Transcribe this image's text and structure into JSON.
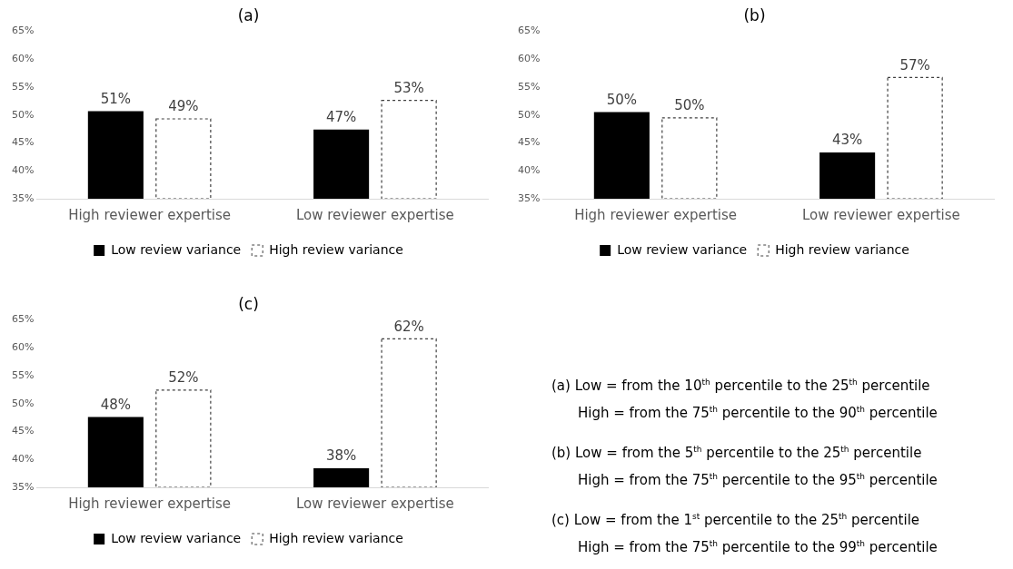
{
  "chart_data": [
    {
      "type": "bar",
      "title": "(a)",
      "categories": [
        "High reviewer expertise",
        "Low reviewer expertise"
      ],
      "series": [
        {
          "name": "Low review variance",
          "color": "#000000",
          "values": [
            50.7,
            47.4
          ],
          "value_labels": [
            "51%",
            "47%"
          ]
        },
        {
          "name": "High review variance",
          "color": "#404040",
          "line_style": "dashed",
          "values": [
            49.3,
            52.6
          ],
          "value_labels": [
            "49%",
            "53%"
          ]
        }
      ],
      "ylim": [
        35,
        65
      ],
      "yticks": [
        {
          "value": 35,
          "label": "35%"
        },
        {
          "value": 40,
          "label": "40%"
        },
        {
          "value": 45,
          "label": "45%"
        },
        {
          "value": 50,
          "label": "50%"
        },
        {
          "value": 55,
          "label": "55%"
        },
        {
          "value": 60,
          "label": "60%"
        },
        {
          "value": 65,
          "label": "65%"
        }
      ],
      "grid": false,
      "legend": "bottom"
    },
    {
      "type": "bar",
      "title": "(b)",
      "categories": [
        "High reviewer expertise",
        "Low reviewer expertise"
      ],
      "series": [
        {
          "name": "Low review variance",
          "color": "#000000",
          "values": [
            50.5,
            43.3
          ],
          "value_labels": [
            "50%",
            "43%"
          ]
        },
        {
          "name": "High review variance",
          "color": "#404040",
          "line_style": "dashed",
          "values": [
            49.5,
            56.7
          ],
          "value_labels": [
            "50%",
            "57%"
          ]
        }
      ],
      "ylim": [
        35,
        65
      ],
      "yticks": [
        {
          "value": 35,
          "label": "35%"
        },
        {
          "value": 40,
          "label": "40%"
        },
        {
          "value": 45,
          "label": "45%"
        },
        {
          "value": 50,
          "label": "50%"
        },
        {
          "value": 55,
          "label": "55%"
        },
        {
          "value": 60,
          "label": "60%"
        },
        {
          "value": 65,
          "label": "65%"
        }
      ],
      "grid": false,
      "legend": "bottom"
    },
    {
      "type": "bar",
      "title": "(c)",
      "categories": [
        "High reviewer expertise",
        "Low reviewer expertise"
      ],
      "series": [
        {
          "name": "Low review variance",
          "color": "#000000",
          "values": [
            47.6,
            38.4
          ],
          "value_labels": [
            "48%",
            "38%"
          ]
        },
        {
          "name": "High review variance",
          "color": "#404040",
          "line_style": "dashed",
          "values": [
            52.4,
            61.6
          ],
          "value_labels": [
            "52%",
            "62%"
          ]
        }
      ],
      "ylim": [
        35,
        65
      ],
      "yticks": [
        {
          "value": 35,
          "label": "35%"
        },
        {
          "value": 40,
          "label": "40%"
        },
        {
          "value": 45,
          "label": "45%"
        },
        {
          "value": 50,
          "label": "50%"
        },
        {
          "value": 55,
          "label": "55%"
        },
        {
          "value": 60,
          "label": "60%"
        },
        {
          "value": 65,
          "label": "65%"
        }
      ],
      "grid": false,
      "legend": "bottom"
    },
    {
      "type": "other",
      "annotations": [
        "(a)  Low = from the 10$^{th}$ percentile to the 25$^{th}$ percentile",
        "High = from the 75$^{th}$ percentile to the 90$^{th}$ percentile",
        "(b)  Low = from the 5$^{th}$ percentile to the 25$^{th}$ percentile",
        "High = from the 75$^{th}$ percentile to the 95$^{th}$ percentile",
        "(c)  Low = from the 1$^{st}$ percentile to the 25$^{th}$ percentile",
        "High = from the 75$^{th}$ percentile to the 99$^{th}$ percentile"
      ]
    }
  ]
}
